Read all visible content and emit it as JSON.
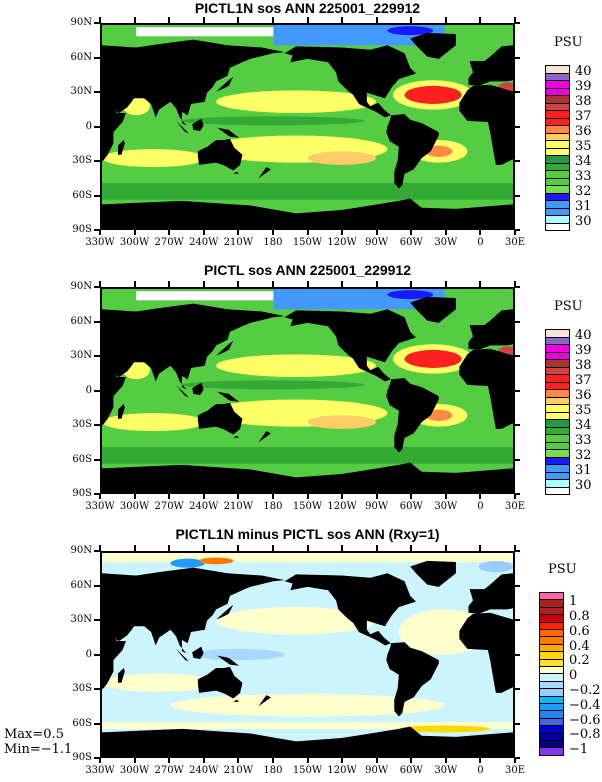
{
  "panels": [
    {
      "title": "PICTL1N sos ANN 225001_229912",
      "kind": "abs"
    },
    {
      "title": "PICTL sos ANN 225001_229912",
      "kind": "abs"
    },
    {
      "title": "PICTL1N minus PICTL sos ANN (Rxy=1)",
      "kind": "diff"
    }
  ],
  "x_ticks": [
    "330W",
    "300W",
    "270W",
    "240W",
    "210W",
    "180",
    "150W",
    "120W",
    "90W",
    "60W",
    "30W",
    "0",
    "30E"
  ],
  "y_ticks": [
    "90N",
    "60N",
    "30N",
    "0",
    "30S",
    "60S",
    "90S"
  ],
  "abs_legend": {
    "unit": "PSU",
    "labels": [
      "40",
      "39",
      "38",
      "37",
      "36",
      "35",
      "34",
      "33",
      "32",
      "31",
      "30"
    ],
    "colors_top_down": [
      "#f5e6d8",
      "#8866cc",
      "#ee00dd",
      "#ee00dd",
      "#aa3333",
      "#cc4444",
      "#ff2020",
      "#ff2020",
      "#ff8844",
      "#ffcc66",
      "#ffff66",
      "#ffff66",
      "#229944",
      "#33aa33",
      "#55cc44",
      "#55cc44",
      "#77dd55",
      "#1a1aff",
      "#4499ff",
      "#4499ff",
      "#aaffff",
      "#ffffff"
    ]
  },
  "diff_legend": {
    "unit": "PSU",
    "labels": [
      "1",
      "0.8",
      "0.6",
      "0.4",
      "0.2",
      "0",
      "−0.2",
      "−0.4",
      "−0.6",
      "−0.8",
      "−1"
    ],
    "colors_top_down": [
      "#ff66aa",
      "#aa2222",
      "#aa2222",
      "#cc0000",
      "#ff2200",
      "#ff6600",
      "#ff7700",
      "#ffaa00",
      "#ffd700",
      "#ffe033",
      "#ffffcc",
      "#ccf4ff",
      "#a8d8ff",
      "#99ccff",
      "#00bbff",
      "#2299ff",
      "#2288ee",
      "#4466dd",
      "#0000cc",
      "#000099",
      "#000088",
      "#8833ee"
    ]
  },
  "stats": {
    "max": "Max=0.5",
    "min": "Min=−1.1"
  }
}
